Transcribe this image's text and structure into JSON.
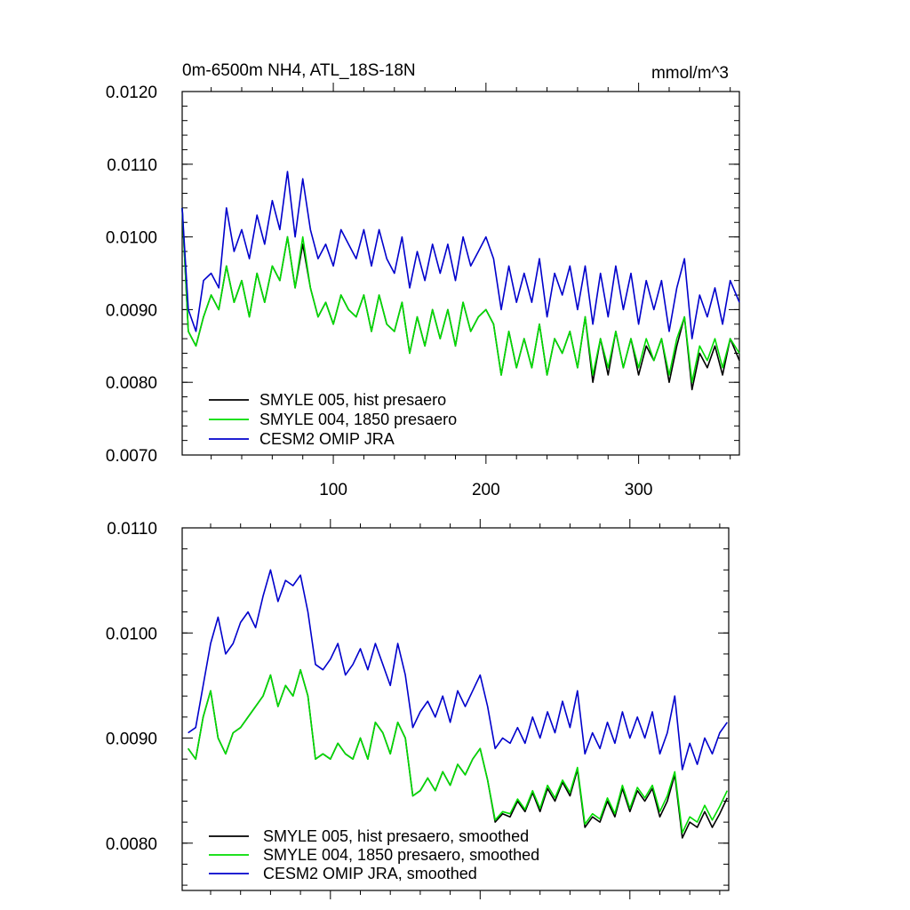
{
  "chart_data": [
    {
      "type": "line",
      "title": "0m-6500m NH4, ATL_18S-18N",
      "units": "mmol/m^3",
      "xlabel": "",
      "ylabel": "",
      "xlim": [
        1,
        366
      ],
      "ylim": [
        0.007,
        0.012
      ],
      "yticks": [
        "0.0070",
        "0.0080",
        "0.0090",
        "0.0100",
        "0.0110",
        "0.0120"
      ],
      "xticks": [
        100,
        200,
        300
      ],
      "legend": "bottom-left",
      "series": [
        {
          "name": "SMYLE 005, hist presaero",
          "color": "#000000",
          "x": [
            1,
            5,
            10,
            15,
            20,
            25,
            30,
            35,
            40,
            45,
            50,
            55,
            60,
            65,
            70,
            75,
            80,
            85,
            90,
            95,
            100,
            105,
            110,
            115,
            120,
            125,
            130,
            135,
            140,
            145,
            150,
            155,
            160,
            165,
            170,
            175,
            180,
            185,
            190,
            195,
            200,
            205,
            210,
            215,
            220,
            225,
            230,
            235,
            240,
            245,
            250,
            255,
            260,
            265,
            270,
            275,
            280,
            285,
            290,
            295,
            300,
            305,
            310,
            315,
            320,
            325,
            330,
            335,
            340,
            345,
            350,
            355,
            360,
            366
          ],
          "y": [
            0.0104,
            0.0087,
            0.0085,
            0.0089,
            0.0092,
            0.009,
            0.0096,
            0.0091,
            0.0094,
            0.0089,
            0.0095,
            0.0091,
            0.0096,
            0.0094,
            0.01,
            0.0093,
            0.0099,
            0.0093,
            0.0089,
            0.0091,
            0.0088,
            0.0092,
            0.009,
            0.0089,
            0.0092,
            0.0087,
            0.0092,
            0.0088,
            0.0087,
            0.0091,
            0.0084,
            0.0089,
            0.0085,
            0.009,
            0.0086,
            0.009,
            0.0085,
            0.0091,
            0.0087,
            0.0089,
            0.009,
            0.0088,
            0.0081,
            0.0087,
            0.0082,
            0.0086,
            0.0082,
            0.0088,
            0.0081,
            0.0086,
            0.0084,
            0.0087,
            0.0082,
            0.0089,
            0.008,
            0.0086,
            0.0081,
            0.0087,
            0.0082,
            0.0086,
            0.0081,
            0.0085,
            0.0083,
            0.0086,
            0.008,
            0.0085,
            0.0089,
            0.0079,
            0.0084,
            0.0082,
            0.0085,
            0.0081,
            0.0086,
            0.0083
          ]
        },
        {
          "name": "SMYLE 004, 1850 presaero",
          "color": "#00dd00",
          "x": [
            1,
            5,
            10,
            15,
            20,
            25,
            30,
            35,
            40,
            45,
            50,
            55,
            60,
            65,
            70,
            75,
            80,
            85,
            90,
            95,
            100,
            105,
            110,
            115,
            120,
            125,
            130,
            135,
            140,
            145,
            150,
            155,
            160,
            165,
            170,
            175,
            180,
            185,
            190,
            195,
            200,
            205,
            210,
            215,
            220,
            225,
            230,
            235,
            240,
            245,
            250,
            255,
            260,
            265,
            270,
            275,
            280,
            285,
            290,
            295,
            300,
            305,
            310,
            315,
            320,
            325,
            330,
            335,
            340,
            345,
            350,
            355,
            360,
            366
          ],
          "y": [
            0.0104,
            0.0087,
            0.0085,
            0.0089,
            0.0092,
            0.009,
            0.0096,
            0.0091,
            0.0094,
            0.0089,
            0.0095,
            0.0091,
            0.0096,
            0.0094,
            0.01,
            0.0093,
            0.01,
            0.0093,
            0.0089,
            0.0091,
            0.0088,
            0.0092,
            0.009,
            0.0089,
            0.0092,
            0.0087,
            0.0092,
            0.0088,
            0.0087,
            0.0091,
            0.0084,
            0.0089,
            0.0085,
            0.009,
            0.0086,
            0.009,
            0.0085,
            0.0091,
            0.0087,
            0.0089,
            0.009,
            0.0088,
            0.0081,
            0.0087,
            0.0082,
            0.0086,
            0.0082,
            0.0088,
            0.0081,
            0.0086,
            0.0084,
            0.0087,
            0.0082,
            0.0089,
            0.0081,
            0.0086,
            0.0082,
            0.0087,
            0.0082,
            0.0086,
            0.0082,
            0.0086,
            0.0083,
            0.0086,
            0.0081,
            0.0086,
            0.0089,
            0.008,
            0.0085,
            0.0083,
            0.0086,
            0.0082,
            0.0086,
            0.0084
          ]
        },
        {
          "name": "CESM2 OMIP JRA",
          "color": "#0000cc",
          "x": [
            1,
            5,
            10,
            15,
            20,
            25,
            30,
            35,
            40,
            45,
            50,
            55,
            60,
            65,
            70,
            75,
            80,
            85,
            90,
            95,
            100,
            105,
            110,
            115,
            120,
            125,
            130,
            135,
            140,
            145,
            150,
            155,
            160,
            165,
            170,
            175,
            180,
            185,
            190,
            195,
            200,
            205,
            210,
            215,
            220,
            225,
            230,
            235,
            240,
            245,
            250,
            255,
            260,
            265,
            270,
            275,
            280,
            285,
            290,
            295,
            300,
            305,
            310,
            315,
            320,
            325,
            330,
            335,
            340,
            345,
            350,
            355,
            360,
            366
          ],
          "y": [
            0.0104,
            0.009,
            0.0087,
            0.0094,
            0.0095,
            0.0093,
            0.0104,
            0.0098,
            0.0101,
            0.0097,
            0.0103,
            0.0099,
            0.0105,
            0.0101,
            0.0109,
            0.01,
            0.0108,
            0.0101,
            0.0097,
            0.0099,
            0.0096,
            0.0101,
            0.0099,
            0.0097,
            0.0101,
            0.0096,
            0.0101,
            0.0097,
            0.0095,
            0.01,
            0.0093,
            0.0098,
            0.0094,
            0.0099,
            0.0095,
            0.0099,
            0.0094,
            0.01,
            0.0096,
            0.0098,
            0.01,
            0.0097,
            0.009,
            0.0096,
            0.0091,
            0.0095,
            0.0091,
            0.0097,
            0.0089,
            0.0095,
            0.0092,
            0.0096,
            0.009,
            0.0096,
            0.0088,
            0.0095,
            0.0089,
            0.0096,
            0.009,
            0.0095,
            0.0088,
            0.0094,
            0.009,
            0.0094,
            0.0087,
            0.0093,
            0.0097,
            0.0086,
            0.0092,
            0.0089,
            0.0093,
            0.0088,
            0.0094,
            0.0091
          ]
        }
      ]
    },
    {
      "type": "line",
      "title": "",
      "xlabel": "",
      "ylabel": "",
      "xlim": [
        1,
        366
      ],
      "ylim": [
        0.00755,
        0.011
      ],
      "yticks": [
        "0.0080",
        "0.0090",
        "0.0100",
        "0.0110"
      ],
      "xticks": [
        100,
        200,
        300
      ],
      "legend": "bottom-left",
      "series": [
        {
          "name": "SMYLE 005, hist presaero, smoothed",
          "color": "#000000",
          "x": [
            5,
            10,
            15,
            20,
            25,
            30,
            35,
            40,
            45,
            50,
            55,
            60,
            65,
            70,
            75,
            80,
            85,
            90,
            95,
            100,
            105,
            110,
            115,
            120,
            125,
            130,
            135,
            140,
            145,
            150,
            155,
            160,
            165,
            170,
            175,
            180,
            185,
            190,
            195,
            200,
            205,
            210,
            215,
            220,
            225,
            230,
            235,
            240,
            245,
            250,
            255,
            260,
            265,
            270,
            275,
            280,
            285,
            290,
            295,
            300,
            305,
            310,
            315,
            320,
            325,
            330,
            335,
            340,
            345,
            350,
            355,
            360,
            365
          ],
          "y": [
            0.0089,
            0.0088,
            0.0092,
            0.00945,
            0.009,
            0.00885,
            0.00905,
            0.0091,
            0.0092,
            0.0093,
            0.0094,
            0.0096,
            0.0093,
            0.0095,
            0.0094,
            0.00965,
            0.0094,
            0.0088,
            0.00885,
            0.0088,
            0.00895,
            0.00885,
            0.0088,
            0.009,
            0.0088,
            0.00915,
            0.00905,
            0.00885,
            0.00915,
            0.009,
            0.00845,
            0.0085,
            0.00862,
            0.0085,
            0.00868,
            0.00855,
            0.00875,
            0.00865,
            0.0088,
            0.0089,
            0.0086,
            0.0082,
            0.00828,
            0.00825,
            0.0084,
            0.0083,
            0.00848,
            0.0083,
            0.00852,
            0.0084,
            0.00858,
            0.00845,
            0.0087,
            0.00815,
            0.00825,
            0.0082,
            0.0084,
            0.00825,
            0.00852,
            0.0083,
            0.0085,
            0.0084,
            0.00852,
            0.00825,
            0.0084,
            0.00865,
            0.00805,
            0.0082,
            0.00815,
            0.0083,
            0.00815,
            0.00828,
            0.00843
          ]
        },
        {
          "name": "SMYLE 004, 1850 presaero, smoothed",
          "color": "#00dd00",
          "x": [
            5,
            10,
            15,
            20,
            25,
            30,
            35,
            40,
            45,
            50,
            55,
            60,
            65,
            70,
            75,
            80,
            85,
            90,
            95,
            100,
            105,
            110,
            115,
            120,
            125,
            130,
            135,
            140,
            145,
            150,
            155,
            160,
            165,
            170,
            175,
            180,
            185,
            190,
            195,
            200,
            205,
            210,
            215,
            220,
            225,
            230,
            235,
            240,
            245,
            250,
            255,
            260,
            265,
            270,
            275,
            280,
            285,
            290,
            295,
            300,
            305,
            310,
            315,
            320,
            325,
            330,
            335,
            340,
            345,
            350,
            355,
            360,
            365
          ],
          "y": [
            0.0089,
            0.0088,
            0.0092,
            0.00945,
            0.009,
            0.00885,
            0.00905,
            0.0091,
            0.0092,
            0.0093,
            0.0094,
            0.0096,
            0.0093,
            0.0095,
            0.0094,
            0.00965,
            0.0094,
            0.0088,
            0.00885,
            0.0088,
            0.00895,
            0.00885,
            0.0088,
            0.009,
            0.0088,
            0.00915,
            0.00905,
            0.00885,
            0.00915,
            0.009,
            0.00845,
            0.0085,
            0.00862,
            0.0085,
            0.00868,
            0.00855,
            0.00875,
            0.00865,
            0.0088,
            0.0089,
            0.0086,
            0.00822,
            0.0083,
            0.00828,
            0.00842,
            0.00832,
            0.0085,
            0.00833,
            0.00855,
            0.00843,
            0.0086,
            0.00848,
            0.00872,
            0.00818,
            0.00828,
            0.00823,
            0.00843,
            0.00828,
            0.00855,
            0.00833,
            0.00853,
            0.00843,
            0.00855,
            0.0083,
            0.00845,
            0.00868,
            0.0081,
            0.00825,
            0.0082,
            0.00836,
            0.00822,
            0.00835,
            0.0085
          ]
        },
        {
          "name": "CESM2 OMIP JRA, smoothed",
          "color": "#0000cc",
          "x": [
            5,
            10,
            15,
            20,
            25,
            30,
            35,
            40,
            45,
            50,
            55,
            60,
            65,
            70,
            75,
            80,
            85,
            90,
            95,
            100,
            105,
            110,
            115,
            120,
            125,
            130,
            135,
            140,
            145,
            150,
            155,
            160,
            165,
            170,
            175,
            180,
            185,
            190,
            195,
            200,
            205,
            210,
            215,
            220,
            225,
            230,
            235,
            240,
            245,
            250,
            255,
            260,
            265,
            270,
            275,
            280,
            285,
            290,
            295,
            300,
            305,
            310,
            315,
            320,
            325,
            330,
            335,
            340,
            345,
            350,
            355,
            360,
            365
          ],
          "y": [
            0.00905,
            0.0091,
            0.0095,
            0.0099,
            0.01015,
            0.0098,
            0.0099,
            0.0101,
            0.0102,
            0.01005,
            0.01035,
            0.0106,
            0.0103,
            0.0105,
            0.01045,
            0.01055,
            0.0102,
            0.0097,
            0.00965,
            0.00975,
            0.0099,
            0.0096,
            0.0097,
            0.00985,
            0.00965,
            0.0099,
            0.0097,
            0.0095,
            0.0099,
            0.0096,
            0.0091,
            0.00925,
            0.00935,
            0.0092,
            0.0094,
            0.00915,
            0.00945,
            0.0093,
            0.00945,
            0.0096,
            0.0093,
            0.0089,
            0.009,
            0.00895,
            0.0091,
            0.00895,
            0.0092,
            0.009,
            0.00925,
            0.00905,
            0.00935,
            0.0091,
            0.00945,
            0.00885,
            0.00905,
            0.0089,
            0.00915,
            0.00895,
            0.00925,
            0.009,
            0.0092,
            0.009,
            0.00925,
            0.00885,
            0.00905,
            0.0094,
            0.0087,
            0.00895,
            0.00875,
            0.009,
            0.00885,
            0.00905,
            0.00915
          ]
        }
      ]
    }
  ]
}
